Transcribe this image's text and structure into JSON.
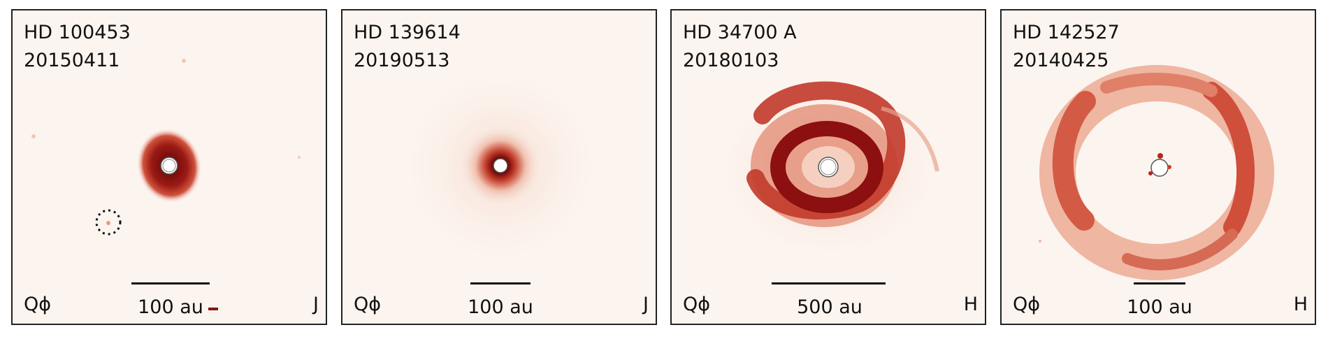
{
  "panels": [
    {
      "name": "HD 100453",
      "date": "20150411",
      "pol": "Qϕ",
      "scalebar": "100 au",
      "band": "J"
    },
    {
      "name": "HD 139614",
      "date": "20190513",
      "pol": "Qϕ",
      "scalebar": "100 au",
      "band": "J"
    },
    {
      "name": "HD 34700 A",
      "date": "20180103",
      "pol": "Qϕ",
      "scalebar": "500 au",
      "band": "H"
    },
    {
      "name": "HD 142527",
      "date": "20140425",
      "pol": "Qϕ",
      "scalebar": "100 au",
      "band": "H"
    }
  ],
  "colors": {
    "background": "#fcf4ef",
    "disk_dark": "#7a0a0a",
    "disk_mid": "#c4382a",
    "disk_light": "#e9a58e"
  }
}
